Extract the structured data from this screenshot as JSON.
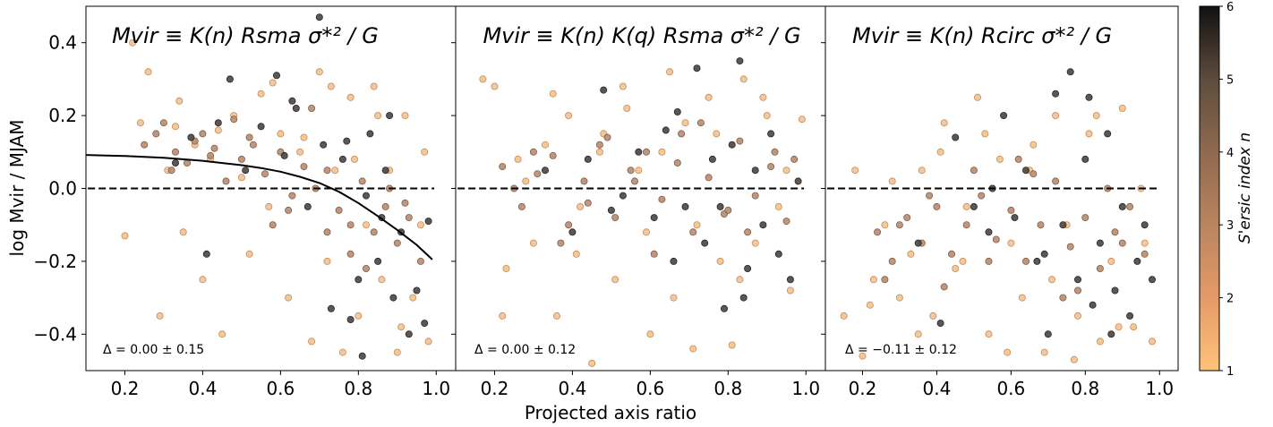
{
  "chart_data": [
    {
      "type": "scatter",
      "title": "Mvir ≡ K(n) Rsma σ*² / G",
      "annotation": "Δ = 0.00 ± 0.15",
      "xlim": [
        0.1,
        1.05
      ],
      "ylim": [
        -0.5,
        0.5
      ],
      "xticks": [
        "0.2",
        "0.4",
        "0.6",
        "0.8",
        "1.0"
      ],
      "yticks": [
        "0.4",
        "0.2",
        "0.0",
        "−0.2",
        "−0.4"
      ],
      "reference_line": 0.0,
      "fit_curve": {
        "x": [
          0.1,
          0.2,
          0.3,
          0.4,
          0.5,
          0.55,
          0.6,
          0.65,
          0.7,
          0.75,
          0.8,
          0.85,
          0.9,
          0.95,
          0.99
        ],
        "y": [
          0.092,
          0.089,
          0.084,
          0.076,
          0.064,
          0.056,
          0.046,
          0.032,
          0.015,
          -0.009,
          -0.04,
          -0.076,
          -0.114,
          -0.155,
          -0.195
        ]
      },
      "series": [
        {
          "n_range": "low (1–2)",
          "x": [
            0.22,
            0.26,
            0.29,
            0.31,
            0.33,
            0.35,
            0.38,
            0.4,
            0.42,
            0.45,
            0.48,
            0.5,
            0.52,
            0.55,
            0.57,
            0.6,
            0.62,
            0.65,
            0.68,
            0.7,
            0.72,
            0.74,
            0.76,
            0.78,
            0.8,
            0.82,
            0.84,
            0.86,
            0.88,
            0.9,
            0.92,
            0.94,
            0.96,
            0.98,
            0.2,
            0.24,
            0.34,
            0.44,
            0.58,
            0.66,
            0.73,
            0.79,
            0.85,
            0.91,
            0.97
          ],
          "y": [
            0.4,
            0.32,
            -0.35,
            0.05,
            0.17,
            -0.12,
            0.12,
            -0.25,
            0.08,
            -0.4,
            0.2,
            0.03,
            -0.18,
            0.26,
            -0.05,
            0.15,
            -0.3,
            0.1,
            -0.42,
            0.32,
            -0.2,
            0.05,
            -0.45,
            0.25,
            -0.35,
            -0.1,
            0.28,
            -0.25,
            0.05,
            -0.45,
            0.2,
            -0.3,
            -0.1,
            -0.42,
            -0.13,
            0.18,
            0.24,
            0.16,
            0.29,
            0.14,
            0.28,
            0.08,
            0.2,
            -0.38,
            0.1
          ]
        },
        {
          "n_range": "mid (2–4)",
          "x": [
            0.25,
            0.3,
            0.33,
            0.36,
            0.4,
            0.43,
            0.46,
            0.5,
            0.53,
            0.56,
            0.6,
            0.63,
            0.66,
            0.69,
            0.72,
            0.75,
            0.78,
            0.81,
            0.84,
            0.87,
            0.9,
            0.93,
            0.96,
            0.28,
            0.38,
            0.48,
            0.58,
            0.68,
            0.78,
            0.88,
            0.32,
            0.42,
            0.52,
            0.62,
            0.72,
            0.82,
            0.92
          ],
          "y": [
            0.12,
            0.18,
            0.1,
            0.07,
            0.15,
            0.11,
            0.02,
            0.08,
            0.12,
            0.04,
            0.1,
            -0.02,
            0.06,
            0.0,
            0.05,
            -0.06,
            -0.1,
            0.02,
            -0.12,
            -0.05,
            -0.15,
            -0.08,
            -0.2,
            0.15,
            0.13,
            0.19,
            -0.1,
            0.22,
            -0.18,
            0.0,
            0.05,
            0.09,
            0.14,
            -0.06,
            -0.12,
            -0.22,
            -0.04
          ]
        },
        {
          "n_range": "high (4–6)",
          "x": [
            0.33,
            0.37,
            0.41,
            0.47,
            0.51,
            0.55,
            0.59,
            0.61,
            0.64,
            0.67,
            0.7,
            0.71,
            0.73,
            0.76,
            0.78,
            0.8,
            0.82,
            0.83,
            0.85,
            0.86,
            0.88,
            0.89,
            0.91,
            0.93,
            0.95,
            0.97,
            0.98,
            0.44,
            0.63,
            0.77,
            0.81,
            0.87
          ],
          "y": [
            0.07,
            0.14,
            -0.18,
            0.3,
            0.05,
            0.17,
            0.31,
            0.09,
            0.22,
            -0.05,
            0.47,
            0.12,
            -0.33,
            0.08,
            -0.36,
            -0.25,
            -0.02,
            0.15,
            -0.2,
            -0.08,
            0.2,
            -0.3,
            -0.12,
            -0.4,
            -0.28,
            -0.37,
            -0.09,
            0.18,
            0.24,
            0.13,
            -0.46,
            0.05
          ]
        }
      ]
    },
    {
      "type": "scatter",
      "title": "Mvir ≡ K(n) K(q) Rsma σ*² / G",
      "annotation": "Δ = 0.00 ± 0.12",
      "xlim": [
        0.1,
        1.05
      ],
      "ylim": [
        -0.5,
        0.5
      ],
      "xticks": [
        "0.2",
        "0.4",
        "0.6",
        "0.8",
        "1.0"
      ],
      "reference_line": 0.0,
      "series": [
        {
          "n_range": "low (1–2)",
          "x": [
            0.17,
            0.2,
            0.23,
            0.26,
            0.3,
            0.33,
            0.36,
            0.39,
            0.42,
            0.45,
            0.48,
            0.51,
            0.54,
            0.57,
            0.6,
            0.63,
            0.66,
            0.69,
            0.72,
            0.75,
            0.78,
            0.81,
            0.84,
            0.87,
            0.9,
            0.93,
            0.96,
            0.99,
            0.22,
            0.28,
            0.35,
            0.41,
            0.47,
            0.53,
            0.59,
            0.65,
            0.71,
            0.77,
            0.83,
            0.89,
            0.95
          ],
          "y": [
            0.3,
            0.28,
            -0.22,
            0.08,
            -0.15,
            0.12,
            -0.35,
            0.2,
            -0.05,
            -0.48,
            0.15,
            -0.25,
            0.22,
            0.05,
            -0.4,
            0.1,
            -0.3,
            0.18,
            -0.1,
            0.25,
            -0.2,
            -0.43,
            0.3,
            -0.15,
            0.2,
            -0.05,
            -0.28,
            0.19,
            -0.35,
            0.02,
            0.26,
            -0.18,
            0.1,
            0.28,
            -0.12,
            0.32,
            -0.44,
            0.15,
            -0.25,
            0.25,
            0.05
          ]
        },
        {
          "n_range": "mid (2–4)",
          "x": [
            0.22,
            0.27,
            0.31,
            0.35,
            0.39,
            0.43,
            0.47,
            0.51,
            0.55,
            0.59,
            0.63,
            0.67,
            0.71,
            0.75,
            0.79,
            0.83,
            0.87,
            0.91,
            0.95,
            0.25,
            0.37,
            0.49,
            0.61,
            0.73,
            0.85,
            0.97,
            0.3,
            0.44,
            0.56,
            0.68,
            0.8,
            0.92
          ],
          "y": [
            0.06,
            -0.05,
            0.04,
            0.09,
            -0.1,
            0.02,
            0.12,
            -0.08,
            0.05,
            0.1,
            -0.03,
            0.07,
            -0.12,
            0.03,
            -0.07,
            0.13,
            -0.02,
            0.06,
            -0.09,
            0.0,
            -0.15,
            0.14,
            -0.18,
            0.18,
            -0.12,
            0.08,
            0.1,
            -0.04,
            0.02,
            0.15,
            -0.06,
            0.1
          ]
        },
        {
          "n_range": "high (4–6)",
          "x": [
            0.33,
            0.4,
            0.44,
            0.48,
            0.53,
            0.57,
            0.61,
            0.64,
            0.67,
            0.69,
            0.72,
            0.74,
            0.76,
            0.79,
            0.81,
            0.83,
            0.85,
            0.87,
            0.89,
            0.91,
            0.93,
            0.96,
            0.98,
            0.5,
            0.66,
            0.78,
            0.84
          ],
          "y": [
            0.05,
            -0.12,
            0.08,
            0.27,
            -0.02,
            0.1,
            -0.08,
            0.16,
            0.21,
            -0.05,
            0.33,
            -0.15,
            0.08,
            -0.33,
            0.12,
            0.35,
            -0.22,
            0.05,
            -0.1,
            0.15,
            -0.18,
            -0.25,
            0.02,
            -0.06,
            -0.2,
            -0.05,
            -0.3
          ]
        }
      ]
    },
    {
      "type": "scatter",
      "title": "Mvir ≡ K(n) Rcirc σ*² / G",
      "annotation": "Δ = −0.11 ± 0.12",
      "xlim": [
        0.1,
        1.05
      ],
      "ylim": [
        -0.5,
        0.5
      ],
      "xticks": [
        "0.2",
        "0.4",
        "0.6",
        "0.8",
        "1.0"
      ],
      "reference_line": 0.0,
      "series": [
        {
          "n_range": "low (1–2)",
          "x": [
            0.15,
            0.18,
            0.2,
            0.23,
            0.26,
            0.3,
            0.33,
            0.36,
            0.39,
            0.42,
            0.45,
            0.48,
            0.51,
            0.54,
            0.57,
            0.6,
            0.63,
            0.66,
            0.69,
            0.72,
            0.75,
            0.78,
            0.81,
            0.84,
            0.87,
            0.9,
            0.93,
            0.96,
            0.98,
            0.22,
            0.28,
            0.35,
            0.41,
            0.47,
            0.53,
            0.59,
            0.65,
            0.71,
            0.77,
            0.83,
            0.89,
            0.95
          ],
          "y": [
            -0.35,
            0.05,
            -0.46,
            -0.25,
            -0.1,
            -0.3,
            -0.18,
            0.05,
            -0.35,
            0.18,
            -0.22,
            -0.05,
            0.25,
            -0.4,
            0.08,
            -0.15,
            -0.3,
            0.12,
            -0.45,
            0.2,
            -0.1,
            -0.35,
            0.15,
            -0.42,
            -0.2,
            0.22,
            -0.38,
            -0.15,
            -0.42,
            -0.32,
            0.02,
            -0.4,
            0.1,
            -0.2,
            0.15,
            -0.45,
            0.05,
            -0.25,
            -0.47,
            0.2,
            -0.38,
            0.0
          ]
        },
        {
          "n_range": "mid (2–4)",
          "x": [
            0.24,
            0.28,
            0.32,
            0.36,
            0.4,
            0.44,
            0.48,
            0.52,
            0.56,
            0.6,
            0.64,
            0.68,
            0.72,
            0.76,
            0.8,
            0.84,
            0.88,
            0.92,
            0.96,
            0.26,
            0.38,
            0.5,
            0.62,
            0.74,
            0.86,
            0.3,
            0.42,
            0.54,
            0.66,
            0.78,
            0.9
          ],
          "y": [
            -0.12,
            -0.2,
            -0.08,
            -0.15,
            -0.05,
            -0.18,
            -0.1,
            -0.02,
            -0.14,
            -0.06,
            -0.2,
            -0.1,
            0.02,
            -0.16,
            -0.08,
            -0.22,
            -0.12,
            -0.05,
            -0.18,
            -0.25,
            -0.02,
            0.05,
            0.08,
            -0.3,
            0.0,
            -0.1,
            -0.27,
            -0.2,
            0.04,
            -0.28,
            -0.15
          ]
        },
        {
          "n_range": "high (4–6)",
          "x": [
            0.35,
            0.41,
            0.45,
            0.5,
            0.54,
            0.58,
            0.61,
            0.64,
            0.67,
            0.7,
            0.72,
            0.74,
            0.76,
            0.78,
            0.8,
            0.82,
            0.84,
            0.86,
            0.88,
            0.9,
            0.92,
            0.94,
            0.96,
            0.98,
            0.55,
            0.69,
            0.81,
            0.87
          ],
          "y": [
            -0.15,
            -0.37,
            0.14,
            -0.05,
            -0.12,
            0.2,
            -0.08,
            0.05,
            -0.2,
            -0.4,
            0.26,
            -0.1,
            0.32,
            -0.25,
            0.08,
            -0.32,
            -0.15,
            0.15,
            -0.28,
            -0.05,
            -0.35,
            -0.2,
            -0.1,
            -0.25,
            0.0,
            -0.18,
            0.25,
            -0.4
          ]
        }
      ]
    }
  ],
  "axes": {
    "xlabel": "Projected axis ratio",
    "ylabel": "log Mvir / MJAM"
  },
  "colorbar": {
    "label": "S'ersic index n",
    "ticks": [
      "6",
      "5",
      "4",
      "3",
      "2",
      "1"
    ],
    "range": [
      1,
      6
    ],
    "colors": [
      "#ffc27a",
      "#e59a66",
      "#b9855f",
      "#8f6a50",
      "#5e4c3d",
      "#111111"
    ]
  }
}
